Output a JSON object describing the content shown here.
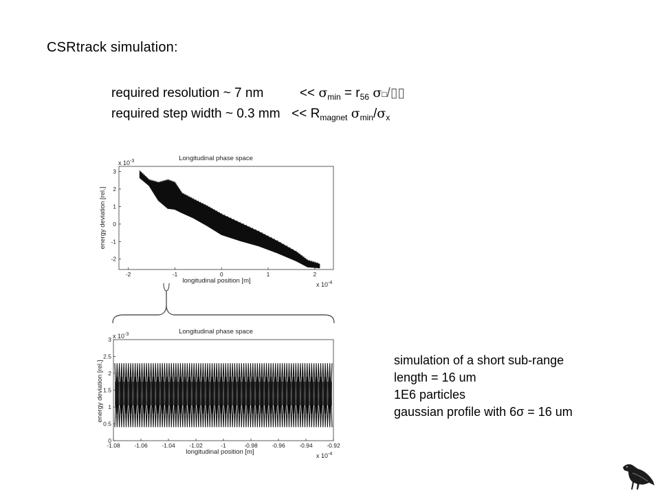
{
  "slide": {
    "title": "CSRtrack simulation:",
    "requirements": [
      {
        "label": "required resolution ~ 7 nm",
        "relation": "<<",
        "formula": {
          "sigma": "σ",
          "sub_min": "min",
          "eq": " = r",
          "sub_56": "56",
          "tail_sigma": "σ",
          "tail_box": "□",
          "tail_rest": "/▯▯"
        }
      },
      {
        "label": "required step width ~ 0.3 mm",
        "relation": "<<",
        "formula": {
          "r": "R",
          "sub_magnet": "magnet",
          "sigma": "σ",
          "sub_min": "min",
          "slash": "/",
          "sigma2": "σ",
          "sub_x": "x"
        }
      }
    ],
    "notes": [
      "simulation of a short sub-range",
      "length = 16 um",
      "1E6 particles",
      "gaussian profile with 6σ  = 16 um"
    ],
    "logo_icon": "crow-icon"
  },
  "charts": [
    {
      "title": "Longitudinal phase space",
      "xlabel": "longitudinal position [m]",
      "ylabel": "energy deviation [rel.]",
      "x_exponent": "x 10",
      "x_exp_power": "-4",
      "y_exponent": "x 10",
      "y_exp_power": "-3",
      "x_ticks": [
        "-2",
        "-1",
        "0",
        "1",
        "2"
      ],
      "y_ticks": [
        "3",
        "2",
        "1",
        "0",
        "-1",
        "-2"
      ]
    },
    {
      "title": "Longitudinal phase space",
      "xlabel": "longitudinal position [m]",
      "ylabel": "energy deviation [rel.]",
      "x_exponent": "x 10",
      "x_exp_power": "-4",
      "y_exponent": "x 10",
      "y_exp_power": "-3",
      "x_ticks": [
        "-1.08",
        "-1.06",
        "-1.04",
        "-1.02",
        "-1",
        "-0.98",
        "-0.96",
        "-0.94",
        "-0.92"
      ],
      "y_ticks": [
        "3",
        "2.5",
        "2",
        "1.5",
        "1",
        "0.5",
        "0"
      ]
    }
  ],
  "chart_data": [
    {
      "type": "scatter",
      "title": "Longitudinal phase space",
      "xlabel": "longitudinal position [m] (x 10^-4)",
      "ylabel": "energy deviation [rel.] (x 10^-3)",
      "xlim": [
        -2.2,
        2.4
      ],
      "ylim": [
        -2.6,
        3.3
      ],
      "grid": false,
      "band": {
        "x": [
          -1.75,
          -1.55,
          -1.35,
          -1.15,
          -1.0,
          -0.85,
          -0.6,
          -0.3,
          0.0,
          0.4,
          0.8,
          1.2,
          1.6,
          1.85,
          2.1
        ],
        "upper": [
          3.0,
          2.5,
          2.35,
          2.5,
          2.35,
          1.75,
          1.4,
          1.0,
          0.55,
          0.05,
          -0.45,
          -1.0,
          -1.6,
          -2.1,
          -2.3
        ],
        "lower": [
          2.65,
          2.2,
          1.35,
          0.9,
          0.85,
          0.65,
          0.35,
          -0.1,
          -0.6,
          -0.95,
          -1.25,
          -1.65,
          -2.1,
          -2.45,
          -2.5
        ]
      }
    },
    {
      "type": "scatter",
      "title": "Longitudinal phase space",
      "xlabel": "longitudinal position [m] (x 10^-4)",
      "ylabel": "energy deviation [rel.] (x 10^-3)",
      "xlim": [
        -1.08,
        -0.92
      ],
      "ylim": [
        0,
        3
      ],
      "grid": false,
      "oscillation": {
        "x_start": -1.08,
        "x_end": -0.92,
        "cycles": 48,
        "outer_max": 2.3,
        "outer_min": 0.4,
        "inner_max": 1.9,
        "inner_min": 0.8
      }
    }
  ]
}
